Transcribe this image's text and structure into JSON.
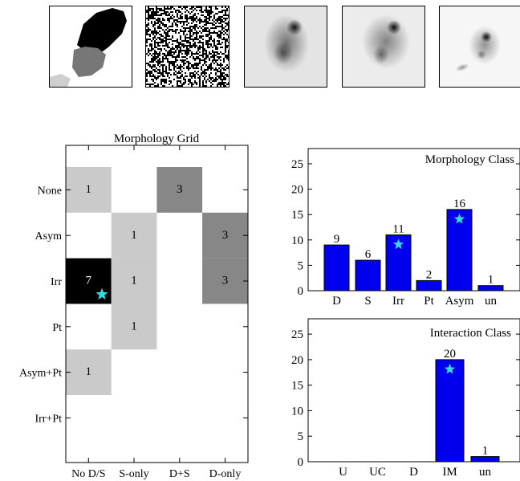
{
  "thumbnails": [
    {
      "name": "segmentation-map-thumbnail",
      "kind": "segmentation"
    },
    {
      "name": "noise-map-thumbnail",
      "kind": "noise"
    },
    {
      "name": "galaxy-thumbnail-1",
      "kind": "galaxy"
    },
    {
      "name": "galaxy-thumbnail-2",
      "kind": "galaxy"
    },
    {
      "name": "galaxy-thumbnail-3",
      "kind": "galaxy"
    }
  ],
  "colors": {
    "bar_fill": "#0000ee",
    "star": "#33dddd",
    "axis": "#000000"
  },
  "chart_data": [
    {
      "type": "heatmap",
      "title": "Morphology Grid",
      "columns": [
        "No D/S",
        "S-only",
        "D+S",
        "D-only"
      ],
      "rows": [
        "None",
        "Asym",
        "Irr",
        "Pt",
        "Asym+Pt",
        "Irr+Pt"
      ],
      "values": [
        [
          1,
          0,
          3,
          0
        ],
        [
          0,
          1,
          0,
          3
        ],
        [
          7,
          1,
          0,
          3
        ],
        [
          0,
          1,
          0,
          0
        ],
        [
          1,
          0,
          0,
          0
        ],
        [
          0,
          0,
          0,
          0
        ]
      ],
      "vmax": 7,
      "star_cell": {
        "row": "Irr",
        "column": "No D/S"
      }
    },
    {
      "type": "bar",
      "title": "Morphology Class",
      "categories": [
        "D",
        "S",
        "Irr",
        "Pt",
        "Asym",
        "un"
      ],
      "values": [
        9,
        6,
        11,
        2,
        16,
        1
      ],
      "ylim": [
        0,
        28
      ],
      "yticks": [
        0,
        5,
        10,
        15,
        20,
        25
      ],
      "star_category": [
        "Irr",
        "Asym"
      ]
    },
    {
      "type": "bar",
      "title": "Interaction Class",
      "categories": [
        "U",
        "UC",
        "D",
        "IM",
        "un"
      ],
      "values": [
        0,
        0,
        0,
        20,
        1
      ],
      "ylim": [
        0,
        28
      ],
      "yticks": [
        0,
        5,
        10,
        15,
        20,
        25
      ],
      "star_category": [
        "IM"
      ]
    }
  ]
}
